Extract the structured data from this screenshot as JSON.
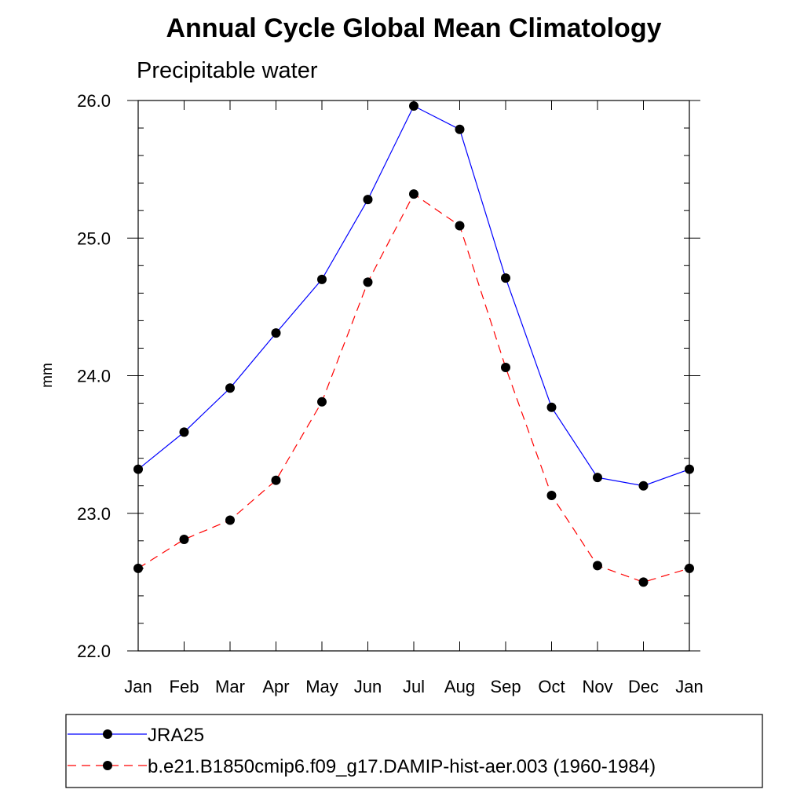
{
  "chart_data": {
    "type": "line",
    "title": "Annual Cycle Global Mean Climatology",
    "subtitle": "Precipitable water",
    "xlabel": "",
    "ylabel": "mm",
    "categories": [
      "Jan",
      "Feb",
      "Mar",
      "Apr",
      "May",
      "Jun",
      "Jul",
      "Aug",
      "Sep",
      "Oct",
      "Nov",
      "Dec",
      "Jan"
    ],
    "ylim": [
      22.0,
      26.0
    ],
    "yticks": [
      22.0,
      23.0,
      24.0,
      25.0,
      26.0
    ],
    "ytick_labels": [
      "22.0",
      "23.0",
      "24.0",
      "25.0",
      "26.0"
    ],
    "y_minor_step": 0.2,
    "grid": false,
    "legend_position": "bottom",
    "series": [
      {
        "name": "JRA25",
        "color": "#0000ff",
        "line_style": "solid",
        "marker": "filled-circle",
        "values": [
          23.32,
          23.59,
          23.91,
          24.31,
          24.7,
          25.28,
          25.96,
          25.79,
          24.71,
          23.77,
          23.26,
          23.2,
          23.32
        ]
      },
      {
        "name": "b.e21.B1850cmip6.f09_g17.DAMIP-hist-aer.003 (1960-1984)",
        "color": "#ff0000",
        "line_style": "dashed",
        "marker": "filled-circle",
        "values": [
          22.6,
          22.81,
          22.95,
          23.24,
          23.81,
          24.68,
          25.32,
          25.09,
          24.06,
          23.13,
          22.62,
          22.5,
          22.6
        ]
      }
    ]
  }
}
